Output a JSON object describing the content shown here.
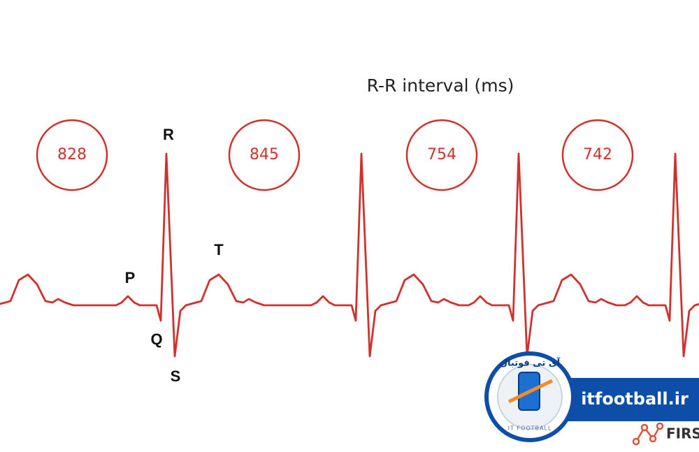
{
  "title": "R-R interval (ms)",
  "intervals": [
    "828",
    "845",
    "754",
    "742"
  ],
  "waves": {
    "p": "P",
    "q": "Q",
    "r": "R",
    "s": "S",
    "t": "T"
  },
  "watermark": {
    "persian": "آی تی فوتبال",
    "site": "itfootball.ir",
    "ring": "IT FOOTBALL",
    "brand": "FIRS"
  }
}
